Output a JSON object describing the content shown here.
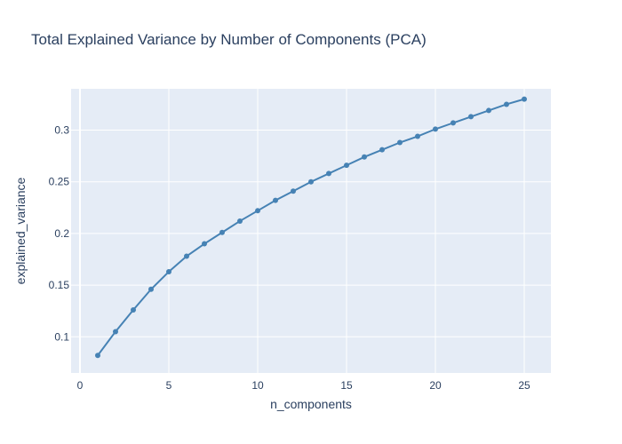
{
  "chart_data": {
    "type": "line",
    "title": "Total Explained Variance by Number of Components (PCA)",
    "xlabel": "n_components",
    "ylabel": "explained_variance",
    "x_ticks": [
      "0",
      "5",
      "10",
      "15",
      "20",
      "25"
    ],
    "y_ticks": [
      "0.1",
      "0.15",
      "0.2",
      "0.25",
      "0.3"
    ],
    "xlim": [
      -0.5,
      26.5
    ],
    "ylim": [
      0.065,
      0.34
    ],
    "grid": true,
    "line_color": "#4682b4",
    "background_color": "#e5ecf6",
    "series": [
      {
        "x": [
          1,
          2,
          3,
          4,
          5,
          6,
          7,
          8,
          9,
          10,
          11,
          12,
          13,
          14,
          15,
          16,
          17,
          18,
          19,
          20,
          21,
          22,
          23,
          24,
          25
        ],
        "y": [
          0.082,
          0.105,
          0.126,
          0.146,
          0.163,
          0.178,
          0.19,
          0.201,
          0.212,
          0.222,
          0.232,
          0.241,
          0.25,
          0.258,
          0.266,
          0.274,
          0.281,
          0.288,
          0.294,
          0.301,
          0.307,
          0.313,
          0.319,
          0.325,
          0.33
        ]
      }
    ]
  }
}
